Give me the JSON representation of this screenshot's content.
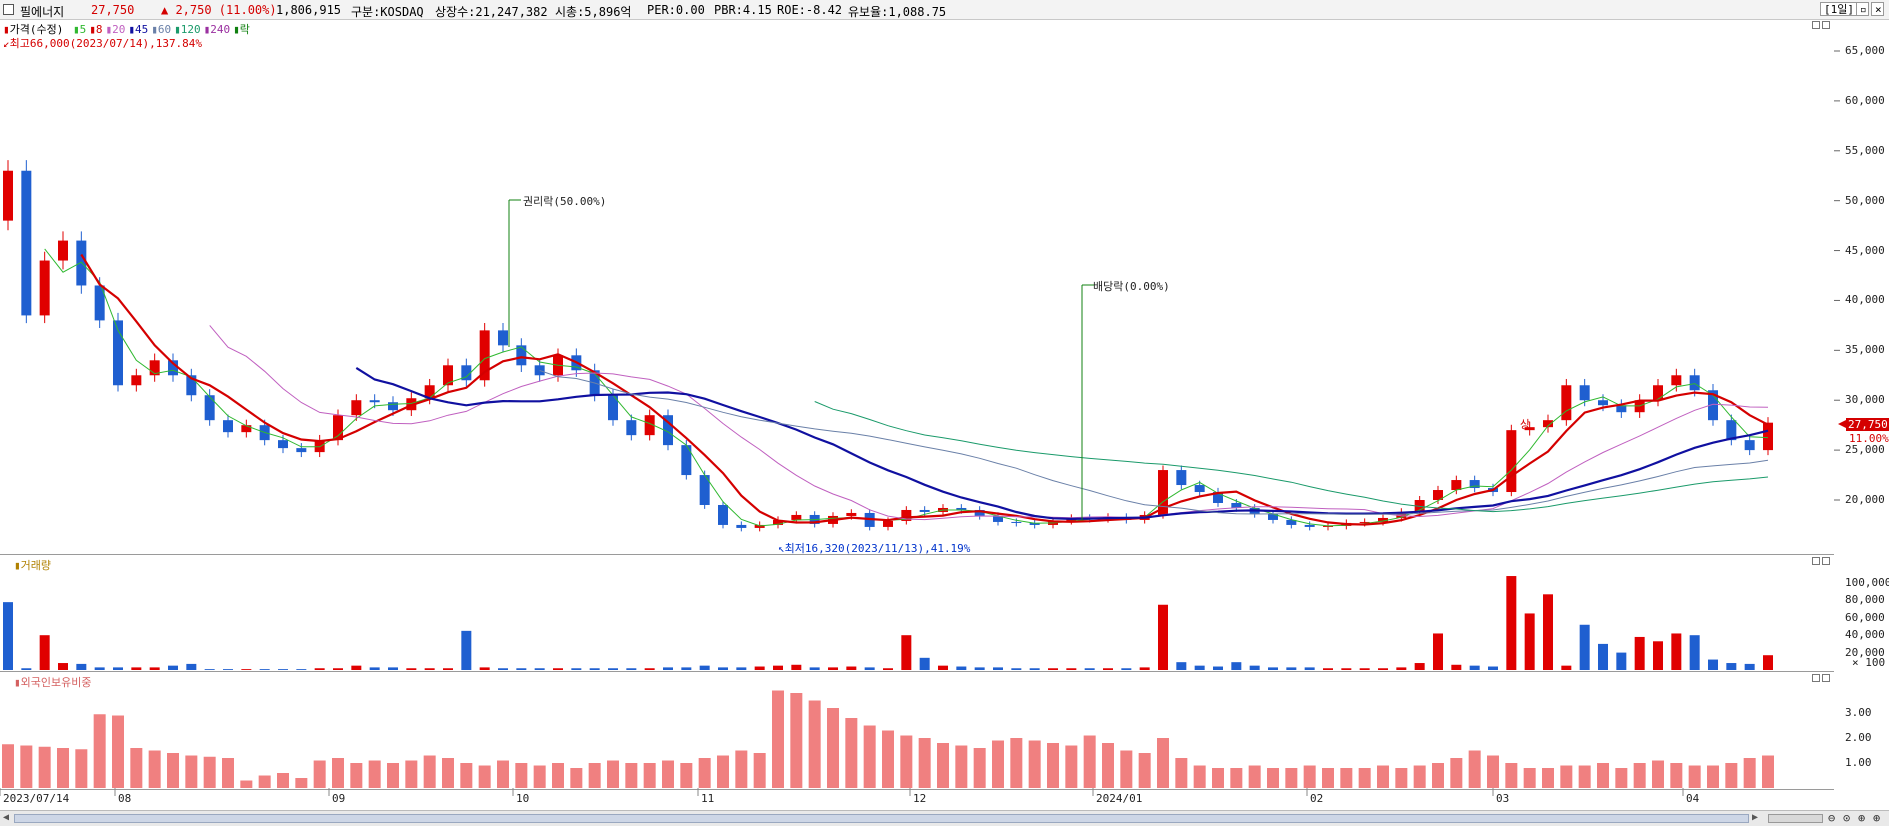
{
  "header": {
    "name": "필에너지",
    "price": "27,750",
    "change": "▲ 2,750 (11.00%)",
    "volume": "1,806,915",
    "market": "구분:KOSDAQ",
    "listed": "상장수:21,247,382",
    "mcap": "시총:5,896억",
    "per": "PER:0.00",
    "pbr": "PBR:4.15",
    "roe": "ROE:-8.42",
    "float": "유보율:1,088.75",
    "period_button": "[1일]"
  },
  "price_panel": {
    "legend": {
      "title": "가격(수정)",
      "ma": [
        {
          "label": "5",
          "color": "#2fb82f"
        },
        {
          "label": "8",
          "color": "#d40000"
        },
        {
          "label": "20",
          "color": "#c060c0"
        },
        {
          "label": "45",
          "color": "#1010a0"
        },
        {
          "label": "60",
          "color": "#6a80a8"
        },
        {
          "label": "120",
          "color": "#1a9a6a"
        },
        {
          "label": "240",
          "color": "#9a30a0"
        },
        {
          "label": "락",
          "color": "#108010"
        }
      ]
    },
    "high_note": "최고66,000(2023/07/14),137.84%",
    "low_note": "최저16,320(2023/11/13),41.19%",
    "annotations": [
      {
        "label": "권리락(50.00%)",
        "date": "2023/09/27"
      },
      {
        "label": "배당락(0.00%)",
        "date": "2023/12/27"
      }
    ],
    "upper_limit_mark": "상",
    "y_ticks": [
      "65,000",
      "60,000",
      "55,000",
      "50,000",
      "45,000",
      "40,000",
      "35,000",
      "30,000",
      "25,000",
      "20,000"
    ],
    "current_price_tag": "27,750",
    "current_pct_tag": "11.00%"
  },
  "volume_panel": {
    "title": "거래량",
    "y_ticks": [
      "100,000",
      "80,000",
      "60,000",
      "40,000",
      "20,000"
    ],
    "unit": "× 100"
  },
  "foreign_panel": {
    "title": "외국인보유비중",
    "y_ticks": [
      "3.00",
      "2.00",
      "1.00"
    ]
  },
  "x_axis": {
    "labels": [
      "2023/07/14",
      "08",
      "09",
      "10",
      "11",
      "12",
      "2024/01",
      "02",
      "03",
      "04"
    ]
  },
  "chart_data": {
    "type": "candlestick",
    "symbol": "필에너지",
    "market": "KOSDAQ",
    "ylim": [
      16000,
      69000
    ],
    "high": {
      "value": 66000,
      "date": "2023/07/14"
    },
    "low": {
      "value": 16320,
      "date": "2023/11/13"
    },
    "last_close": 27750,
    "series": [
      {
        "name": "가격(수정)",
        "approx_close": [
          53000,
          38500,
          44000,
          46000,
          41500,
          38000,
          31500,
          32500,
          34000,
          32500,
          30500,
          28000,
          26800,
          27500,
          26000,
          25200,
          24800,
          26000,
          28500,
          30000,
          29800,
          29000,
          30200,
          31500,
          33500,
          32000,
          37000,
          35500,
          33500,
          32500,
          34500,
          33000,
          30500,
          28000,
          26500,
          28500,
          25500,
          22500,
          19500,
          17500,
          17200,
          17500,
          18000,
          18500,
          17600,
          18400,
          18700,
          17300,
          17900,
          19000,
          18800,
          19200,
          19000,
          18400,
          17800,
          17700,
          17500,
          17900,
          18200,
          18100,
          18300,
          18000,
          18500,
          23000,
          21500,
          20800,
          19700,
          19200,
          18600,
          18000,
          17500,
          17300,
          17400,
          17700,
          17800,
          18200,
          18800,
          20000,
          21000,
          22000,
          21200,
          20800,
          27000,
          27300,
          28000,
          31500,
          30000,
          29500,
          28800,
          30000,
          31500,
          32500,
          31000,
          28000,
          26000,
          25000,
          27750
        ]
      },
      {
        "name": "거래량(×100)",
        "approx": [
          78000,
          2000,
          40000,
          8000,
          7000,
          3000,
          3000,
          3000,
          3000,
          5000,
          7000,
          1000,
          1000,
          1000,
          1000,
          1000,
          1000,
          2000,
          2000,
          5000,
          3000,
          3000,
          2000,
          2000,
          2000,
          45000,
          3000,
          2000,
          2000,
          2000,
          2000,
          2000,
          2000,
          2000,
          2000,
          2000,
          3000,
          3000,
          5000,
          3000,
          3000,
          4000,
          5000,
          6000,
          3000,
          3000,
          4000,
          3000,
          2000,
          40000,
          14000,
          5000,
          4000,
          3000,
          3000,
          2000,
          2000,
          2000,
          2000,
          2000,
          2000,
          2000,
          3000,
          75000,
          9000,
          5000,
          4000,
          9000,
          5000,
          3000,
          3000,
          3000,
          2000,
          2000,
          2000,
          2000,
          3000,
          8000,
          42000,
          6000,
          5000,
          4000,
          108000,
          65000,
          87000,
          5000,
          52000,
          30000,
          20000,
          38000,
          33000,
          42000,
          40000,
          12000,
          8000,
          7000,
          17000
        ]
      },
      {
        "name": "외국인보유비중",
        "approx": [
          1.75,
          1.7,
          1.65,
          1.6,
          1.55,
          2.95,
          2.9,
          1.6,
          1.5,
          1.4,
          1.3,
          1.25,
          1.2,
          0.3,
          0.5,
          0.6,
          0.4,
          1.1,
          1.2,
          1.0,
          1.1,
          1.0,
          1.1,
          1.3,
          1.2,
          1.0,
          0.9,
          1.1,
          1.0,
          0.9,
          1.0,
          0.8,
          1.0,
          1.1,
          1.0,
          1.0,
          1.1,
          1.0,
          1.2,
          1.3,
          1.5,
          1.4,
          3.9,
          3.8,
          3.5,
          3.2,
          2.8,
          2.5,
          2.3,
          2.1,
          2.0,
          1.8,
          1.7,
          1.6,
          1.9,
          2.0,
          1.9,
          1.8,
          1.7,
          2.1,
          1.8,
          1.5,
          1.4,
          2.0,
          1.2,
          0.9,
          0.8,
          0.8,
          0.9,
          0.8,
          0.8,
          0.9,
          0.8,
          0.8,
          0.8,
          0.9,
          0.8,
          0.9,
          1.0,
          1.2,
          1.5,
          1.3,
          1.0,
          0.8,
          0.8,
          0.9,
          0.9,
          1.0,
          0.8,
          1.0,
          1.1,
          1.0,
          0.9,
          0.9,
          1.0,
          1.2,
          1.3
        ]
      }
    ]
  }
}
